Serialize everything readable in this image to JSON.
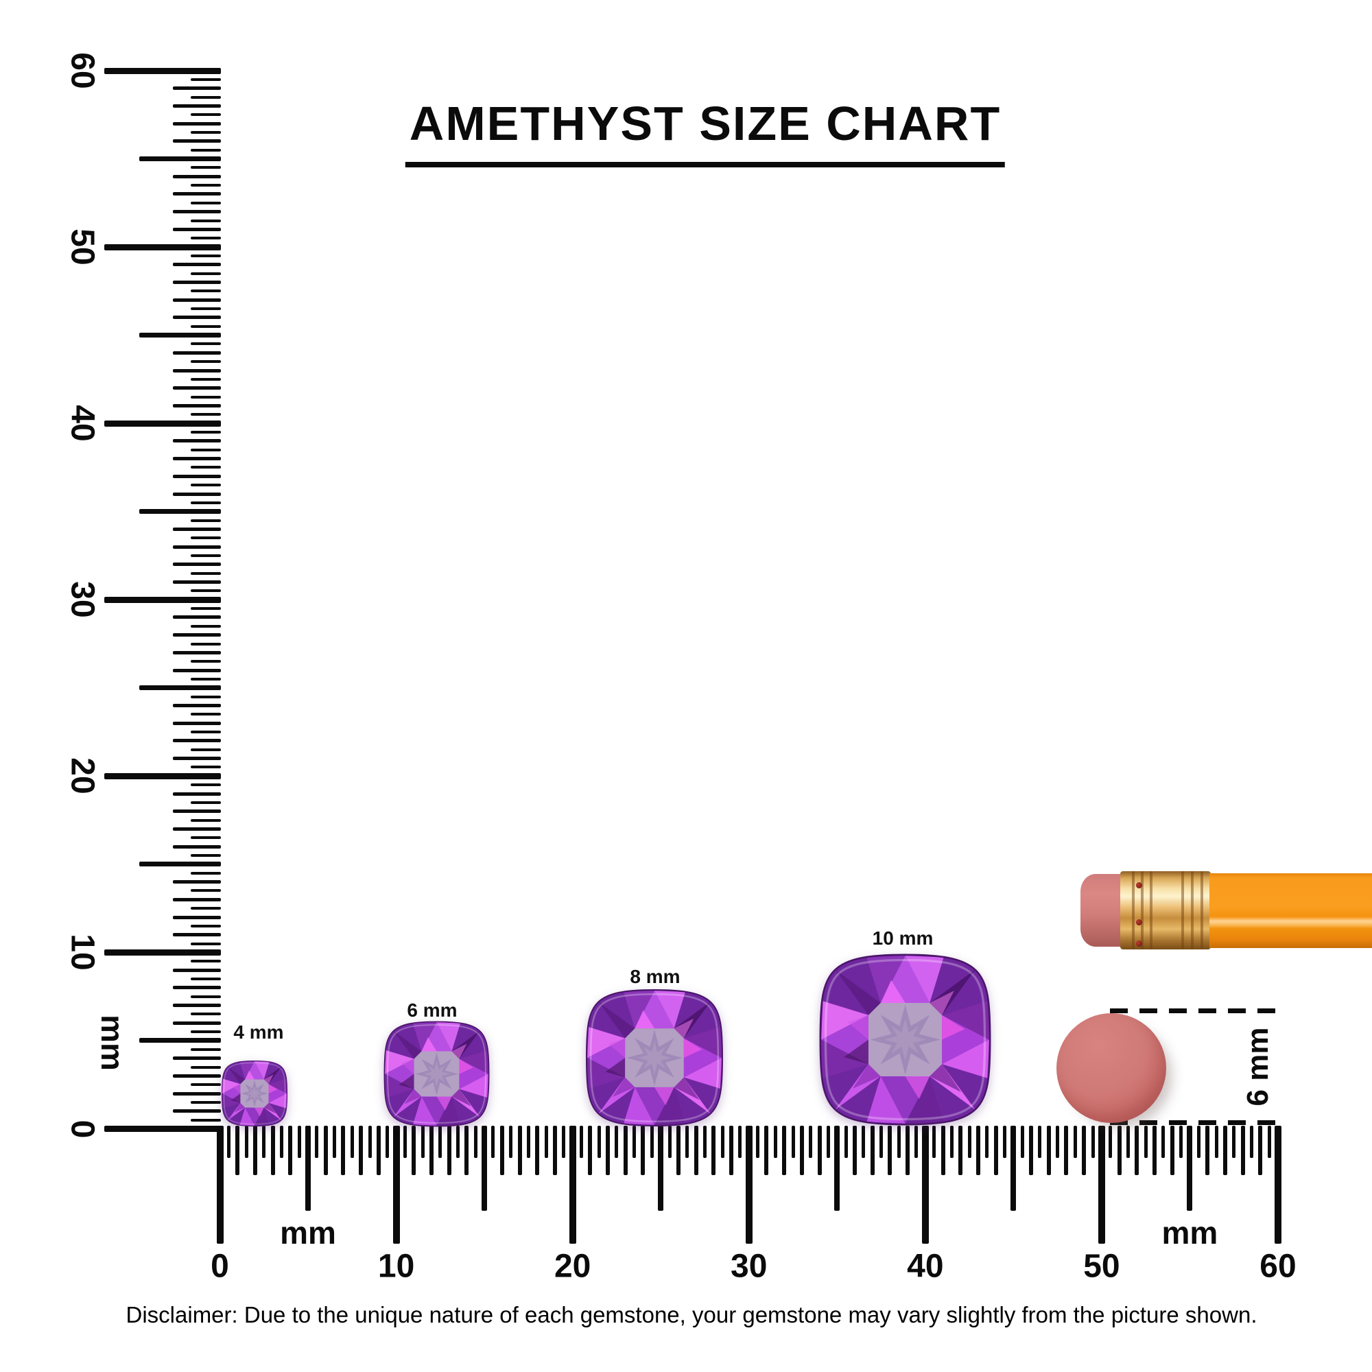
{
  "title": "AMETHYST SIZE CHART",
  "rulers": {
    "unit": "mm",
    "vertical": {
      "labels": [
        "0",
        "10",
        "20",
        "30",
        "40",
        "50",
        "60"
      ],
      "unit_label": "mm",
      "range_mm": [
        0,
        60
      ]
    },
    "horizontal": {
      "labels": [
        "0",
        "10",
        "20",
        "30",
        "40",
        "50",
        "60"
      ],
      "unit_label_left": "mm",
      "unit_label_right": "mm",
      "range_mm": [
        0,
        60
      ]
    }
  },
  "gems": [
    {
      "label": "4 mm",
      "size_mm": 4
    },
    {
      "label": "6 mm",
      "size_mm": 6
    },
    {
      "label": "8 mm",
      "size_mm": 8
    },
    {
      "label": "10 mm",
      "size_mm": 10
    }
  ],
  "gem_colors": {
    "base": "#6f27a0",
    "table": "#b3a0c3",
    "star": "#a08ab8",
    "bright_flash": "#e570f7",
    "dark_facet": "#4f1573"
  },
  "eraser_measure": {
    "label": "6 mm",
    "eraser_color": "#c96966"
  },
  "pencil": {
    "eraser_color": "#d07c7c",
    "ferrule_color": "#ecc077",
    "body_color": "#f99c1e"
  },
  "disclaimer": "Disclaimer: Due to the unique nature of each gemstone, your gemstone may vary slightly from the picture shown."
}
